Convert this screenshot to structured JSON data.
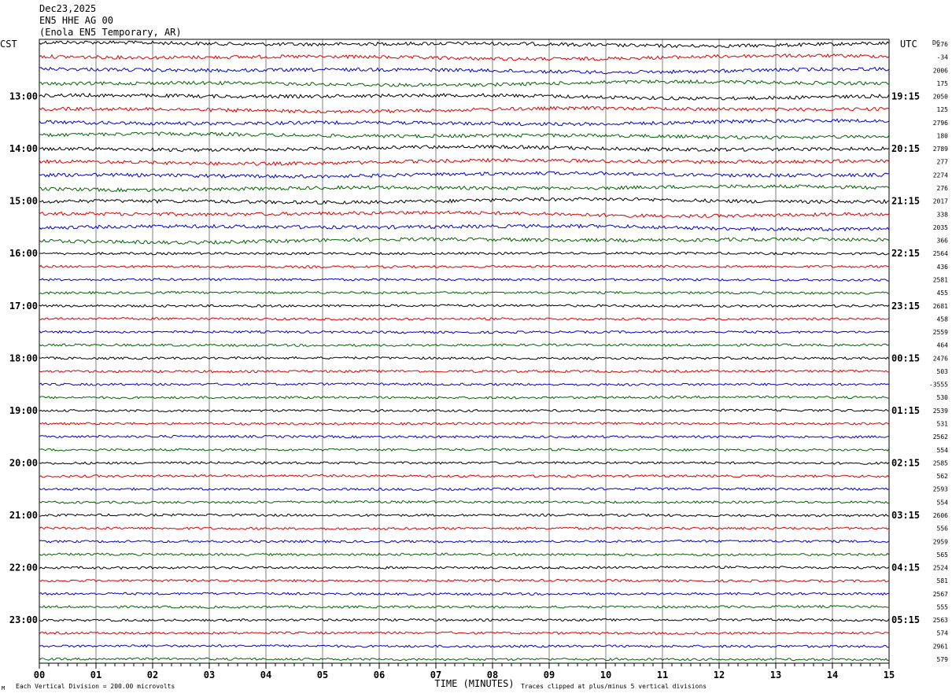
{
  "header": {
    "date": "Dec23,2025",
    "channel": "EN5 HHE AG 00",
    "location": "(Enola EN5 Temporary, AR)"
  },
  "left_tz": "CST",
  "right_tz": "UTC",
  "dc_label": "DC",
  "footer": {
    "scale_note": "Each Vertical Division =  200.00 microvolts",
    "xlabel": "TIME (MINUTES)",
    "clip_note": "Traces clipped at plus/minus 5 vertical divisions",
    "corner_mark": "M"
  },
  "colors": {
    "trace_cycle": [
      "#000000",
      "#dd0000",
      "#0000cc",
      "#006400"
    ],
    "grid": "#808080",
    "frame": "#000000",
    "text": "#000000"
  },
  "chart_data": {
    "type": "line",
    "xlabel": "TIME (MINUTES)",
    "xlim": [
      0,
      15
    ],
    "x_ticks": [
      "00",
      "01",
      "02",
      "03",
      "04",
      "05",
      "06",
      "07",
      "08",
      "09",
      "10",
      "11",
      "12",
      "13",
      "14",
      "15"
    ],
    "rows_per_hour": 4,
    "row_duration_minutes": 15,
    "left_hour_labels": [
      "13:00",
      "14:00",
      "15:00",
      "16:00",
      "17:00",
      "18:00",
      "19:00",
      "20:00",
      "21:00",
      "22:00",
      "23:00"
    ],
    "right_hour_labels": [
      "19:15",
      "20:15",
      "21:15",
      "22:15",
      "23:15",
      "00:15",
      "01:15",
      "02:15",
      "03:15",
      "04:15",
      "05:15"
    ],
    "dc_offsets": [
      "276",
      "-34",
      "2006",
      "175",
      "2050",
      "125",
      "2796",
      "180",
      "2789",
      "277",
      "2274",
      "276",
      "2017",
      "338",
      "2035",
      "366",
      "2564",
      "436",
      "2581",
      "455",
      "2681",
      "458",
      "2559",
      "464",
      "2476",
      "503",
      "-3555",
      "530",
      "2539",
      "531",
      "2562",
      "554",
      "2585",
      "562",
      "2593",
      "554",
      "2606",
      "556",
      "2959",
      "565",
      "2524",
      "581",
      "2567",
      "555",
      "2563",
      "574",
      "2961",
      "579"
    ],
    "units": "microvolts per vertical division",
    "scale_per_division": 200.0
  }
}
